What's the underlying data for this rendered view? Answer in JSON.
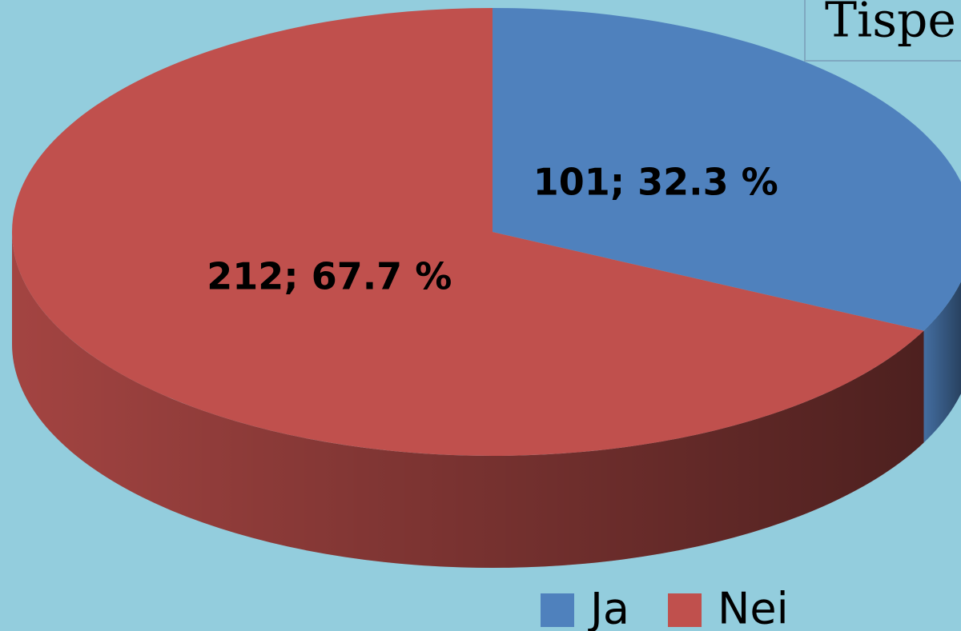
{
  "chart_data": {
    "type": "pie",
    "title": "Tispe",
    "categories": [
      "Ja",
      "Nei"
    ],
    "values": [
      101,
      212
    ],
    "value_labels": [
      "101; 32.3 %",
      "212; 67.7 %"
    ],
    "colors": [
      "#4f81bd",
      "#c0504d"
    ],
    "legend": "bottom"
  }
}
